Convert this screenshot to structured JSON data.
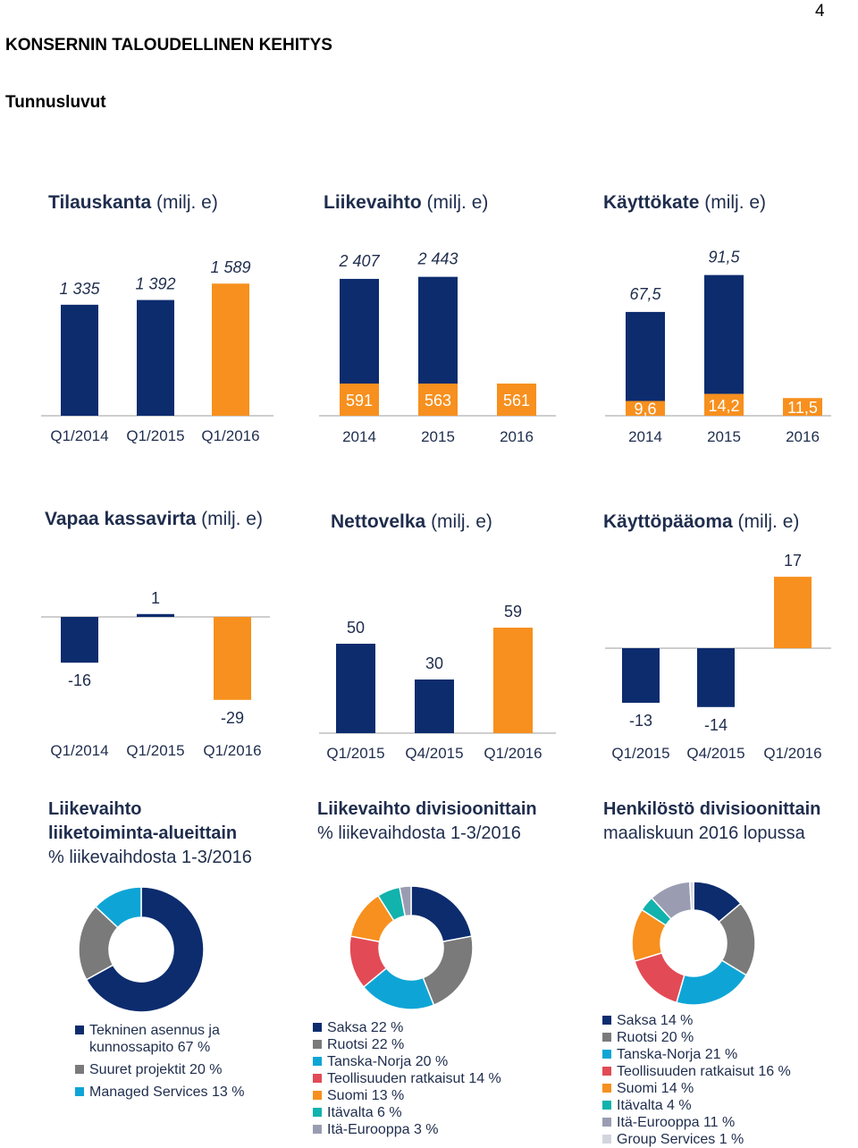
{
  "page": {
    "number": "4",
    "heading": "KONSERNIN TALOUDELLINEN KEHITYS",
    "subheading": "Tunnusluvut"
  },
  "colors": {
    "navy": "#0c2c6e",
    "orange": "#f7901e",
    "gray": "#7a7a7a",
    "cyan": "#0ea5d6",
    "red": "#e24b55",
    "teal": "#12b2ad",
    "lightgray": "#9a9db2"
  },
  "chart_data": [
    {
      "id": "tilauskanta",
      "type": "bar",
      "title": "Tilauskanta",
      "unit": "(milj. e)",
      "categories": [
        "Q1/2014",
        "Q1/2015",
        "Q1/2016"
      ],
      "values": [
        1335,
        1392,
        1589
      ],
      "labels": [
        "1 335",
        "1 392",
        "1 589"
      ],
      "colors": [
        "#0c2c6e",
        "#0c2c6e",
        "#f7901e"
      ]
    },
    {
      "id": "liikevaihto",
      "type": "bar",
      "stacked": true,
      "title": "Liikevaihto",
      "unit": "(milj. e)",
      "categories": [
        "2014",
        "2015",
        "2016"
      ],
      "series": [
        {
          "values": [
            591,
            563,
            561
          ],
          "labels": [
            "591",
            "563",
            "561"
          ],
          "color": "#f7901e"
        },
        {
          "values": [
            2407,
            2443,
            null
          ],
          "labels": [
            "2 407",
            "2 443",
            ""
          ],
          "color": "#0c2c6e"
        }
      ]
    },
    {
      "id": "kayttokate",
      "type": "bar",
      "stacked": true,
      "title": "Käyttökate",
      "unit": "(milj. e)",
      "categories": [
        "2014",
        "2015",
        "2016"
      ],
      "series": [
        {
          "values": [
            9.6,
            14.2,
            11.5
          ],
          "labels": [
            "9,6",
            "14,2",
            "11,5"
          ],
          "color": "#f7901e"
        },
        {
          "values": [
            67.5,
            91.5,
            null
          ],
          "labels": [
            "67,5",
            "91,5",
            ""
          ],
          "color": "#0c2c6e"
        }
      ]
    },
    {
      "id": "vapaa-kassavirta",
      "type": "bar",
      "title": "Vapaa kassavirta",
      "unit": "(milj. e)",
      "categories": [
        "Q1/2014",
        "Q1/2015",
        "Q1/2016"
      ],
      "values": [
        -16,
        1,
        -29
      ],
      "labels": [
        "-16",
        "1",
        "-29"
      ],
      "colors": [
        "#0c2c6e",
        "#0c2c6e",
        "#f7901e"
      ]
    },
    {
      "id": "nettovelka",
      "type": "bar",
      "title": "Nettovelka",
      "unit": "(milj. e)",
      "categories": [
        "Q1/2015",
        "Q4/2015",
        "Q1/2016"
      ],
      "values": [
        50,
        30,
        59
      ],
      "labels": [
        "50",
        "30",
        "59"
      ],
      "colors": [
        "#0c2c6e",
        "#0c2c6e",
        "#f7901e"
      ]
    },
    {
      "id": "kayttopaaoma",
      "type": "bar",
      "title": "Käyttöpääoma",
      "unit": "(milj. e)",
      "categories": [
        "Q1/2015",
        "Q4/2015",
        "Q1/2016"
      ],
      "values": [
        -13,
        -14,
        17
      ],
      "labels": [
        "-13",
        "-14",
        "17"
      ],
      "colors": [
        "#0c2c6e",
        "#0c2c6e",
        "#f7901e"
      ]
    },
    {
      "id": "lv-liiketoiminta",
      "type": "pie",
      "donut": true,
      "title_bold_1": "Liikevaihto",
      "title_bold_2": "liiketoiminta-alueittain",
      "title_sub": "% liikevaihdosta 1-3/2016",
      "slices": [
        {
          "label": "Tekninen asennus ja kunnossapito 67 %",
          "value": 67,
          "color": "#0c2c6e"
        },
        {
          "label": "Suuret projektit 20 %",
          "value": 20,
          "color": "#7a7a7a"
        },
        {
          "label": "Managed Services 13 %",
          "value": 13,
          "color": "#0ea5d6"
        }
      ]
    },
    {
      "id": "lv-divisioonittain",
      "type": "pie",
      "donut": true,
      "title_bold": "Liikevaihto divisioonittain",
      "title_sub": "% liikevaihdosta 1-3/2016",
      "slices": [
        {
          "label": "Saksa 22 %",
          "value": 22,
          "color": "#0c2c6e"
        },
        {
          "label": "Ruotsi 22 %",
          "value": 22,
          "color": "#7a7a7a"
        },
        {
          "label": "Tanska-Norja 20 %",
          "value": 20,
          "color": "#0ea5d6"
        },
        {
          "label": "Teollisuuden ratkaisut 14 %",
          "value": 14,
          "color": "#e24b55"
        },
        {
          "label": "Suomi 13 %",
          "value": 13,
          "color": "#f7901e"
        },
        {
          "label": "Itävalta 6 %",
          "value": 6,
          "color": "#12b2ad"
        },
        {
          "label": "Itä-Eurooppa 3 %",
          "value": 3,
          "color": "#9a9db2"
        }
      ]
    },
    {
      "id": "henkilosto",
      "type": "pie",
      "donut": true,
      "title_bold": "Henkilöstö divisioonittain",
      "title_sub": "maaliskuun 2016 lopussa",
      "slices": [
        {
          "label": "Saksa 14 %",
          "value": 14,
          "color": "#0c2c6e"
        },
        {
          "label": "Ruotsi 20 %",
          "value": 20,
          "color": "#7a7a7a"
        },
        {
          "label": "Tanska-Norja 21 %",
          "value": 21,
          "color": "#0ea5d6"
        },
        {
          "label": "Teollisuuden ratkaisut 16 %",
          "value": 16,
          "color": "#e24b55"
        },
        {
          "label": "Suomi 14 %",
          "value": 14,
          "color": "#f7901e"
        },
        {
          "label": "Itävalta 4 %",
          "value": 4,
          "color": "#12b2ad"
        },
        {
          "label": "Itä-Eurooppa 11 %",
          "value": 11,
          "color": "#9a9db2"
        },
        {
          "label": "Group Services 1 %",
          "value": 1,
          "color": "#d3d5de"
        }
      ]
    }
  ]
}
